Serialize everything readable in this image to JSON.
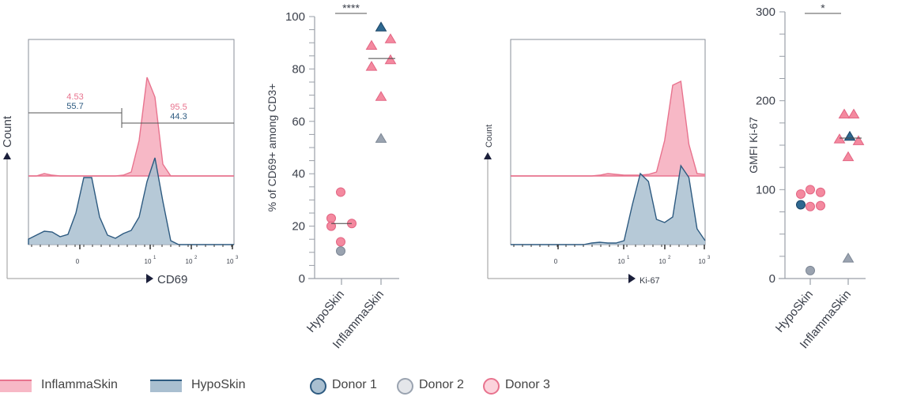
{
  "colors": {
    "inflammaskin_fill": "#f7b8c6",
    "inflammaskin_line": "#e8738e",
    "hyposkin_fill": "#a9bfd0",
    "hyposkin_line": "#2d5a80",
    "donor1": "#2e6890",
    "donor2": "#9aa3b0",
    "donor3": "#f4899f",
    "axis": "#9a9fa8"
  },
  "chart_data": [
    {
      "type": "area",
      "title": "",
      "xlabel": "CD69",
      "ylabel": "Count",
      "x_ticks": [
        "0",
        "10",
        "10",
        "10"
      ],
      "x_tick_exponents": [
        "",
        "1",
        "2",
        "3"
      ],
      "gates": [
        {
          "inflammaskin": "4.53",
          "hyposkin": "55.7"
        },
        {
          "inflammaskin": "95.5",
          "hyposkin": "44.3"
        }
      ],
      "series": [
        {
          "name": "InflammaSkin",
          "relative_count": [
            0,
            0,
            3,
            1,
            0,
            0,
            0,
            0,
            0,
            0,
            0,
            0,
            1,
            5,
            45,
            125,
            100,
            15,
            0,
            0,
            0,
            0,
            0,
            0,
            0,
            0,
            0
          ]
        },
        {
          "name": "HypoSkin",
          "relative_count": [
            7,
            12,
            17,
            16,
            10,
            13,
            40,
            85,
            85,
            35,
            12,
            8,
            14,
            18,
            35,
            80,
            110,
            55,
            5,
            0,
            0,
            0,
            0,
            0,
            0,
            0,
            0
          ]
        }
      ]
    },
    {
      "type": "scatter",
      "ylabel": "% of CD69+ among CD3+",
      "ylim": [
        0,
        100
      ],
      "y_ticks": [
        "0",
        "20",
        "40",
        "60",
        "80",
        "100"
      ],
      "categories": [
        "HypoSkin",
        "InflammaSkin"
      ],
      "significance": "****",
      "points": [
        {
          "group": "HypoSkin",
          "donor": 3,
          "value": 33
        },
        {
          "group": "HypoSkin",
          "donor": 3,
          "value": 23
        },
        {
          "group": "HypoSkin",
          "donor": 3,
          "value": 20
        },
        {
          "group": "HypoSkin",
          "donor": 3,
          "value": 21
        },
        {
          "group": "HypoSkin",
          "donor": 3,
          "value": 14
        },
        {
          "group": "HypoSkin",
          "donor": 2,
          "value": 10.5
        },
        {
          "group": "InflammaSkin",
          "donor": 1,
          "value": 96
        },
        {
          "group": "InflammaSkin",
          "donor": 3,
          "value": 89
        },
        {
          "group": "InflammaSkin",
          "donor": 3,
          "value": 91.5
        },
        {
          "group": "InflammaSkin",
          "donor": 3,
          "value": 81
        },
        {
          "group": "InflammaSkin",
          "donor": 3,
          "value": 83.5
        },
        {
          "group": "InflammaSkin",
          "donor": 3,
          "value": 69.5
        },
        {
          "group": "InflammaSkin",
          "donor": 2,
          "value": 53.5
        }
      ],
      "medians": {
        "HypoSkin": 21,
        "InflammaSkin": 84
      }
    },
    {
      "type": "area",
      "title": "",
      "xlabel": "Ki-67",
      "ylabel": "Count",
      "x_ticks": [
        "0",
        "10",
        "10",
        "10"
      ],
      "x_tick_exponents": [
        "",
        "1",
        "2",
        "3"
      ],
      "series": [
        {
          "name": "InflammaSkin",
          "relative_count": [
            0,
            0,
            0,
            0,
            0,
            0,
            0,
            0,
            0,
            0,
            0,
            1,
            3,
            2,
            1,
            1,
            1,
            2,
            5,
            45,
            115,
            120,
            40,
            3,
            2
          ]
        },
        {
          "name": "HypoSkin",
          "relative_count": [
            0,
            0,
            0,
            0,
            0,
            0,
            0,
            0,
            0,
            0,
            2,
            3,
            2,
            2,
            5,
            50,
            90,
            80,
            32,
            28,
            35,
            100,
            85,
            20,
            5
          ]
        }
      ]
    },
    {
      "type": "scatter",
      "ylabel": "GMFI Ki-67",
      "ylim": [
        0,
        300
      ],
      "y_ticks": [
        "0",
        "100",
        "200",
        "300"
      ],
      "categories": [
        "HypoSkin",
        "InflammaSkin"
      ],
      "significance": "*",
      "points": [
        {
          "group": "HypoSkin",
          "donor": 3,
          "value": 95
        },
        {
          "group": "HypoSkin",
          "donor": 3,
          "value": 100
        },
        {
          "group": "HypoSkin",
          "donor": 3,
          "value": 97
        },
        {
          "group": "HypoSkin",
          "donor": 1,
          "value": 83
        },
        {
          "group": "HypoSkin",
          "donor": 3,
          "value": 81
        },
        {
          "group": "HypoSkin",
          "donor": 3,
          "value": 82
        },
        {
          "group": "HypoSkin",
          "donor": 2,
          "value": 9
        },
        {
          "group": "InflammaSkin",
          "donor": 3,
          "value": 185
        },
        {
          "group": "InflammaSkin",
          "donor": 3,
          "value": 185
        },
        {
          "group": "InflammaSkin",
          "donor": 3,
          "value": 157
        },
        {
          "group": "InflammaSkin",
          "donor": 1,
          "value": 160
        },
        {
          "group": "InflammaSkin",
          "donor": 3,
          "value": 155
        },
        {
          "group": "InflammaSkin",
          "donor": 3,
          "value": 137
        },
        {
          "group": "InflammaSkin",
          "donor": 2,
          "value": 23
        }
      ],
      "medians": {
        "HypoSkin": null,
        "InflammaSkin": 158
      }
    }
  ],
  "legend": {
    "groups": [
      "InflammaSkin",
      "HypoSkin"
    ],
    "donors": [
      "Donor 1",
      "Donor 2",
      "Donor 3"
    ]
  }
}
